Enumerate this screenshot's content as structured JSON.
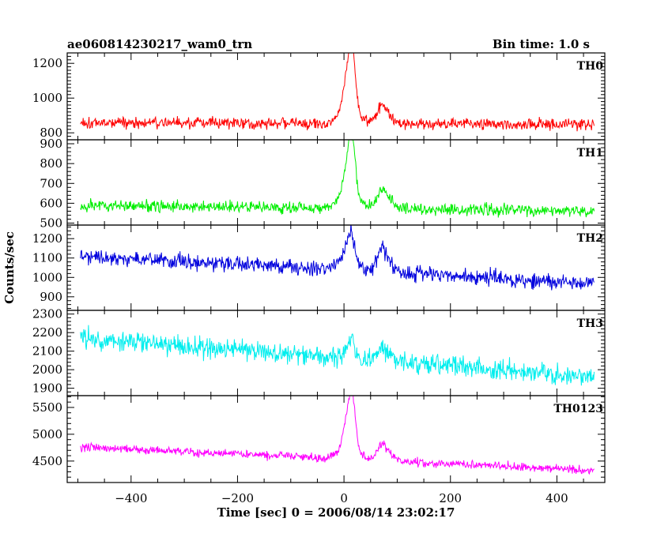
{
  "chart_data": {
    "type": "line",
    "title": "ae060814230217_wam0_trn",
    "bin_time_label": "Bin time: 1.0 s",
    "xlabel": "Time [sec] 0 = 2006/08/14 23:02:17",
    "ylabel": "Counts/sec",
    "xlim": [
      -520,
      490
    ],
    "xticks": [
      -400,
      -200,
      0,
      200,
      400
    ],
    "xtick_labels": [
      "−400",
      "−200",
      "0",
      "200",
      "400"
    ],
    "x_start": -495,
    "x_end": 470,
    "bin_seconds": 1.0,
    "panels": [
      {
        "name": "TH0",
        "color": "#ff0000",
        "ylim": [
          760,
          1260
        ],
        "yticks": [
          800,
          1000,
          1200
        ],
        "ytick_labels": [
          "800",
          "1000",
          "1200"
        ],
        "baseline_start": 860,
        "baseline_end": 850,
        "noise_amplitude": 48,
        "peaks": [
          {
            "t": 15,
            "height": 380,
            "rise": 10,
            "decay": 6
          },
          {
            "t": 5,
            "height": 100,
            "rise": 15,
            "decay": 20
          },
          {
            "t": 70,
            "height": 100,
            "rise": 8,
            "decay": 15
          }
        ]
      },
      {
        "name": "TH1",
        "color": "#00ee00",
        "ylim": [
          490,
          920
        ],
        "yticks": [
          500,
          600,
          700,
          800,
          900
        ],
        "ytick_labels": [
          "500",
          "600",
          "700",
          "800",
          "900"
        ],
        "baseline_start": 590,
        "baseline_end": 560,
        "noise_amplitude": 42,
        "peaks": [
          {
            "t": 15,
            "height": 300,
            "rise": 10,
            "decay": 6
          },
          {
            "t": 5,
            "height": 80,
            "rise": 15,
            "decay": 20
          },
          {
            "t": 70,
            "height": 95,
            "rise": 8,
            "decay": 15
          }
        ]
      },
      {
        "name": "TH2",
        "color": "#0000dd",
        "ylim": [
          830,
          1270
        ],
        "yticks": [
          900,
          1000,
          1100,
          1200
        ],
        "ytick_labels": [
          "900",
          "1000",
          "1100",
          "1200"
        ],
        "baseline_start": 1110,
        "baseline_end": 970,
        "noise_amplitude": 62,
        "peaks": [
          {
            "t": 15,
            "height": 150,
            "rise": 10,
            "decay": 6
          },
          {
            "t": 5,
            "height": 50,
            "rise": 15,
            "decay": 20
          },
          {
            "t": 70,
            "height": 120,
            "rise": 8,
            "decay": 15
          }
        ]
      },
      {
        "name": "TH3",
        "color": "#00eeee",
        "ylim": [
          1860,
          2320
        ],
        "yticks": [
          1900,
          2000,
          2100,
          2200,
          2300
        ],
        "ytick_labels": [
          "1900",
          "2000",
          "2100",
          "2200",
          "2300"
        ],
        "baseline_start": 2170,
        "baseline_end": 1960,
        "noise_amplitude": 80,
        "peaks": [
          {
            "t": 15,
            "height": 110,
            "rise": 10,
            "decay": 6
          },
          {
            "t": 70,
            "height": 60,
            "rise": 8,
            "decay": 15
          }
        ]
      },
      {
        "name": "TH0123",
        "color": "#ff00ff",
        "ylim": [
          4100,
          5720
        ],
        "yticks": [
          4500,
          5000,
          5500
        ],
        "ytick_labels": [
          "4500",
          "5000",
          "5500"
        ],
        "baseline_start": 4760,
        "baseline_end": 4330,
        "noise_amplitude": 115,
        "peaks": [
          {
            "t": 15,
            "height": 1050,
            "rise": 10,
            "decay": 6
          },
          {
            "t": 5,
            "height": 250,
            "rise": 15,
            "decay": 20
          },
          {
            "t": 70,
            "height": 300,
            "rise": 8,
            "decay": 15
          }
        ]
      }
    ],
    "grid": false,
    "legend": "none"
  }
}
